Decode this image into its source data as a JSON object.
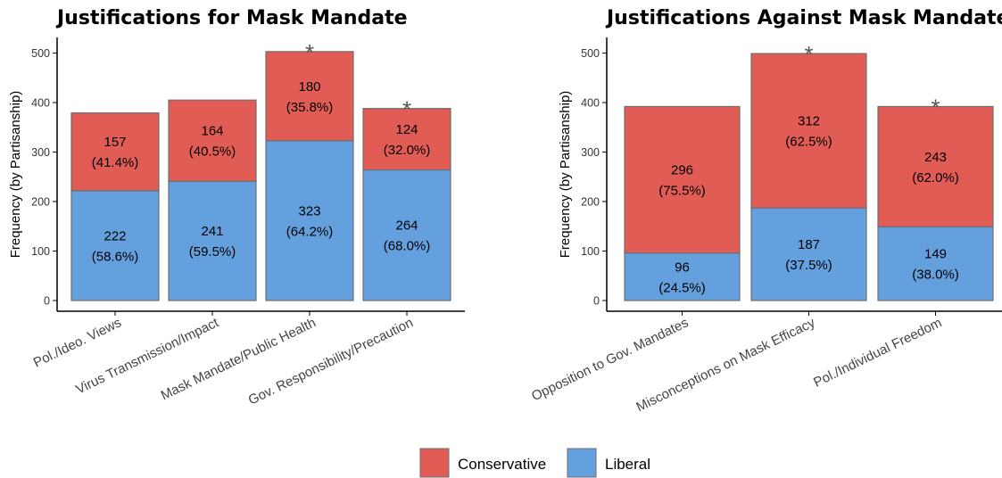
{
  "colors": {
    "conservative": "#E05C55",
    "liberal": "#64A0DE",
    "bar_stroke": "#6e6e6e"
  },
  "legend": {
    "conservative_label": "Conservative",
    "liberal_label": "Liberal"
  },
  "chart_data": [
    {
      "type": "bar",
      "stacked": true,
      "title": "Justifications for Mask Mandate",
      "ylabel": "Frequency (by Partisanship)",
      "ylim": [
        0,
        525
      ],
      "yticks": [
        0,
        100,
        200,
        300,
        400,
        500
      ],
      "categories": [
        "Pol./Ideo. Views",
        "Virus Transmission/Impact",
        "Mask Mandate/Public Health",
        "Gov. Responsibility/Precaution"
      ],
      "series": [
        {
          "name": "Liberal",
          "values": [
            222,
            241,
            323,
            264
          ],
          "labels": [
            "(58.6%)",
            "(59.5%)",
            "(64.2%)",
            "(68.0%)"
          ]
        },
        {
          "name": "Conservative",
          "values": [
            157,
            164,
            180,
            124
          ],
          "labels": [
            "(41.4%)",
            "(40.5%)",
            "(35.8%)",
            "(32.0%)"
          ]
        }
      ],
      "significance": [
        "",
        "",
        "*",
        "*"
      ]
    },
    {
      "type": "bar",
      "stacked": true,
      "title": "Justifications Against Mask Mandate",
      "ylabel": "Frequency (by Partisanship)",
      "ylim": [
        0,
        525
      ],
      "yticks": [
        0,
        100,
        200,
        300,
        400,
        500
      ],
      "categories": [
        "Opposition to Gov. Mandates",
        "Misconceptions on Mask Efficacy",
        "Pol./Individual Freedom"
      ],
      "series": [
        {
          "name": "Liberal",
          "values": [
            96,
            187,
            149
          ],
          "labels": [
            "(24.5%)",
            "(37.5%)",
            "(38.0%)"
          ]
        },
        {
          "name": "Conservative",
          "values": [
            296,
            312,
            243
          ],
          "labels": [
            "(75.5%)",
            "(62.5%)",
            "(62.0%)"
          ]
        }
      ],
      "significance": [
        "",
        "*",
        "*"
      ]
    }
  ]
}
